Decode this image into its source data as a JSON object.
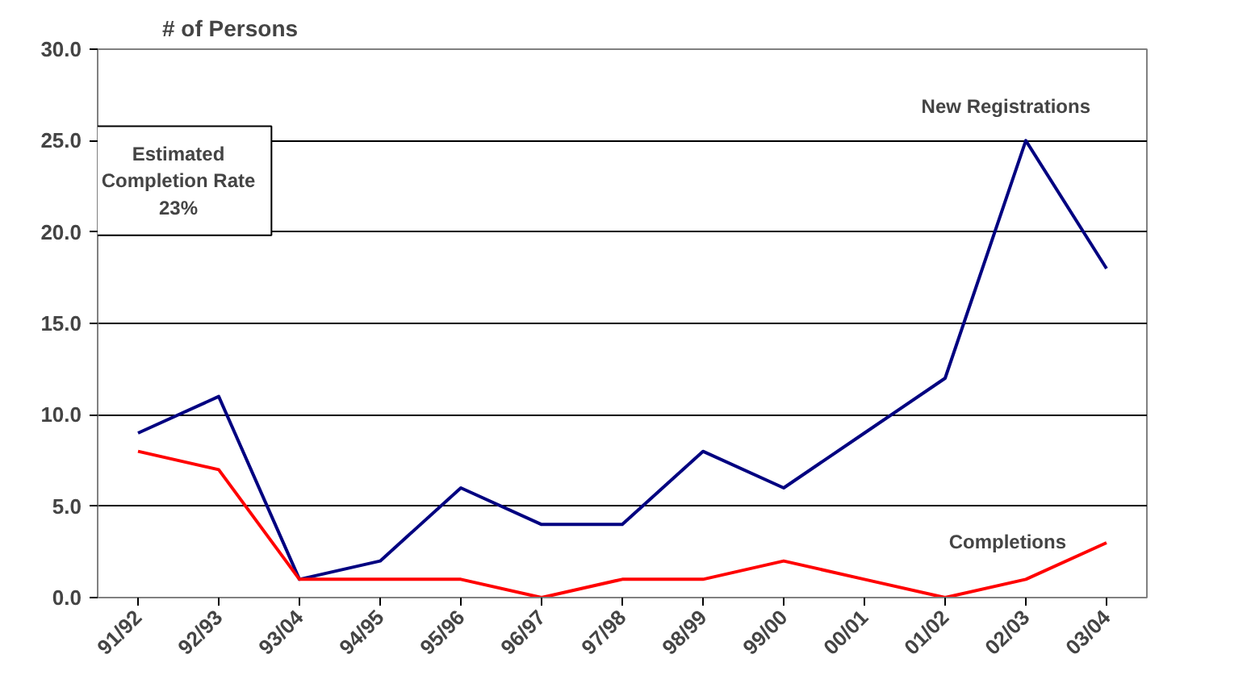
{
  "chart_data": {
    "type": "line",
    "ylabel": "# of Persons",
    "categories": [
      "91/92",
      "92/93",
      "93/04",
      "94/95",
      "95/96",
      "96/97",
      "97/98",
      "98/99",
      "99/00",
      "00/01",
      "01/02",
      "02/03",
      "03/04"
    ],
    "series": [
      {
        "name": "New Registrations",
        "color": "#000080",
        "values": [
          9,
          11,
          1,
          2,
          6,
          4,
          4,
          8,
          6,
          9,
          12,
          25,
          18
        ]
      },
      {
        "name": "Completions",
        "color": "#ff0000",
        "values": [
          8,
          7,
          1,
          1,
          1,
          0,
          1,
          1,
          2,
          1,
          0,
          1,
          3
        ]
      }
    ],
    "ylim": [
      0,
      30
    ],
    "yticks": [
      {
        "value": 0,
        "label": "0.0"
      },
      {
        "value": 5,
        "label": "5.0"
      },
      {
        "value": 10,
        "label": "10.0"
      },
      {
        "value": 15,
        "label": "15.0"
      },
      {
        "value": 20,
        "label": "20.0"
      },
      {
        "value": 25,
        "label": "25.0"
      },
      {
        "value": 30,
        "label": "30.0"
      }
    ],
    "grid": "y",
    "marker": "none",
    "line_style": "solid",
    "annotations": [
      "Estimated\nCompletion Rate\n23%"
    ]
  }
}
